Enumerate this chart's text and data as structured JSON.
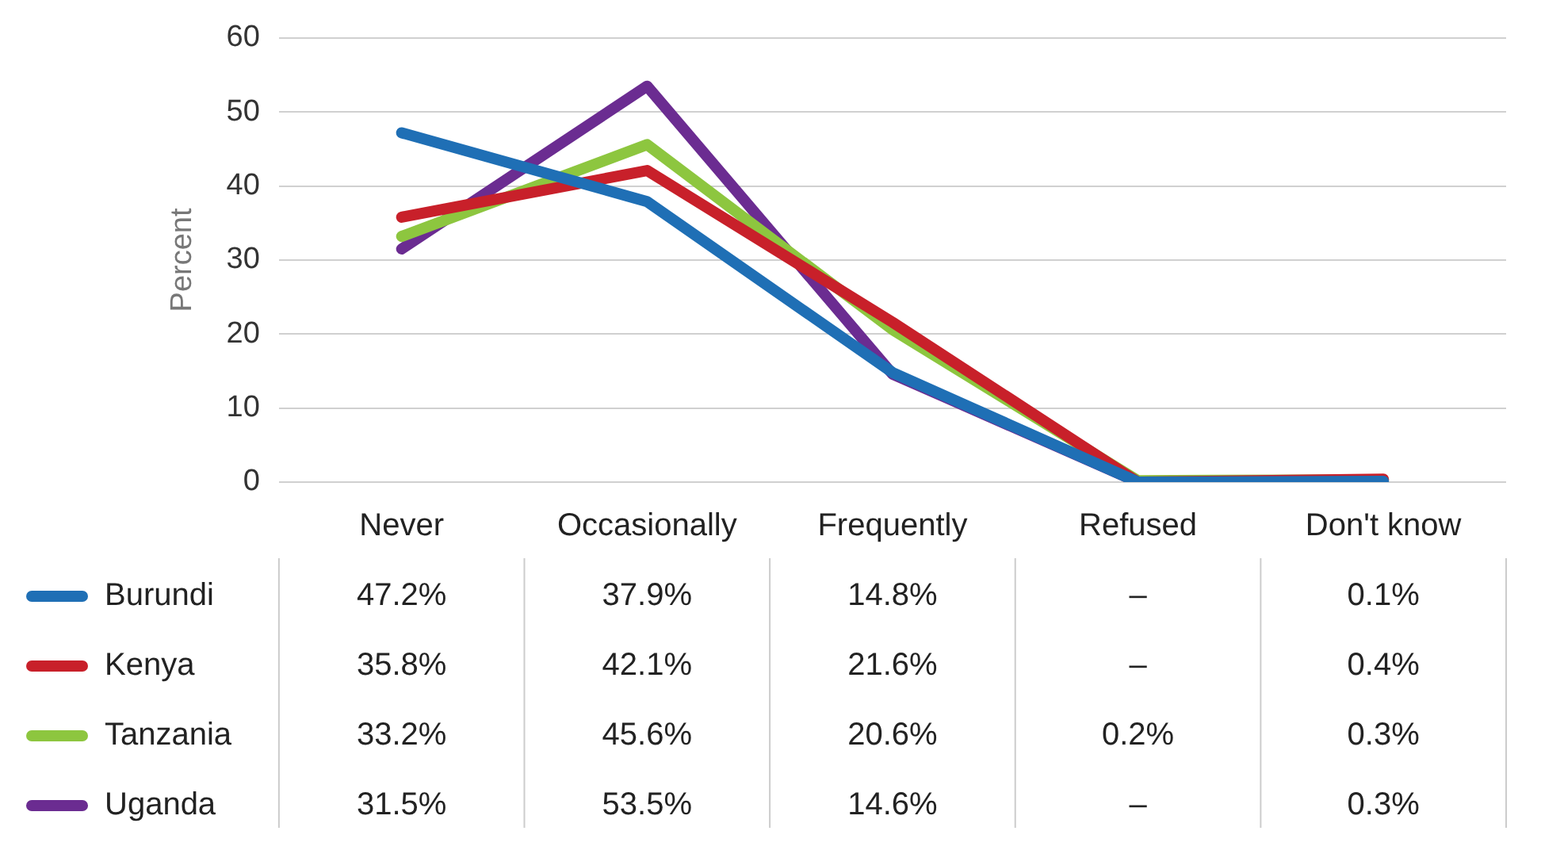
{
  "chart_data": {
    "type": "line",
    "ylabel": "Percent",
    "categories": [
      "Never",
      "Occasionally",
      "Frequently",
      "Refused",
      "Don't know"
    ],
    "ylim": [
      0,
      60
    ],
    "yticks": [
      0,
      10,
      20,
      30,
      40,
      50,
      60
    ],
    "grid": "y",
    "legend": "bottom left",
    "marker": "none",
    "line_style": "solid",
    "series": [
      {
        "name": "Burundi",
        "color": "#1f6fb5",
        "values": [
          47.2,
          37.9,
          14.8,
          0,
          0.1
        ],
        "value_labels": [
          "47.2%",
          "37.9%",
          "14.8%",
          "–",
          "0.1%"
        ]
      },
      {
        "name": "Kenya",
        "color": "#c8202a",
        "values": [
          35.8,
          42.1,
          21.6,
          0,
          0.4
        ],
        "value_labels": [
          "35.8%",
          "42.1%",
          "21.6%",
          "–",
          "0.4%"
        ]
      },
      {
        "name": "Tanzania",
        "color": "#8dc63f",
        "values": [
          33.2,
          45.6,
          20.6,
          0.2,
          0.3
        ],
        "value_labels": [
          "33.2%",
          "45.6%",
          "20.6%",
          "0.2%",
          "0.3%"
        ]
      },
      {
        "name": "Uganda",
        "color": "#6b2c91",
        "values": [
          31.5,
          53.5,
          14.6,
          0,
          0.3
        ],
        "value_labels": [
          "31.5%",
          "53.5%",
          "14.6%",
          "–",
          "0.3%"
        ]
      }
    ]
  }
}
